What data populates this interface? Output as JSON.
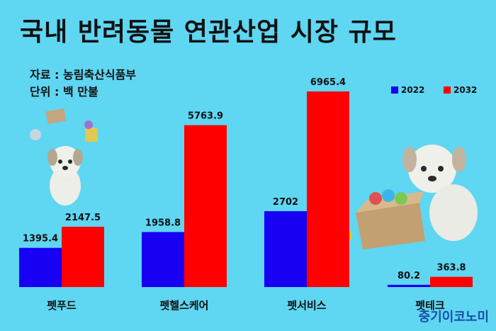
{
  "title": "국내 반려동물 연관산업 시장 규모",
  "source_label": "자료 : 농림축산식품부",
  "unit_label": "단위 : 백 만불",
  "brand": "중기이코노미",
  "colors": {
    "y2022": "#1800f2",
    "y2032": "#ff0000",
    "background": "#5fd6f2"
  },
  "chart_data": {
    "type": "bar",
    "categories": [
      "펫푸드",
      "펫헬스케어",
      "펫서비스",
      "펫테크"
    ],
    "series": [
      {
        "name": "2022",
        "values": [
          1395.4,
          1958.8,
          2702,
          80.2
        ],
        "labels": [
          "1395.4",
          "1958.8",
          "2702",
          "80.2"
        ]
      },
      {
        "name": "2032",
        "values": [
          2147.5,
          5763.9,
          6965.4,
          363.8
        ],
        "labels": [
          "2147.5",
          "5763.9",
          "6965.4",
          "363.8"
        ]
      }
    ],
    "ylim": [
      0,
      6965.4
    ],
    "legend_position": "top-right",
    "grid": false
  }
}
